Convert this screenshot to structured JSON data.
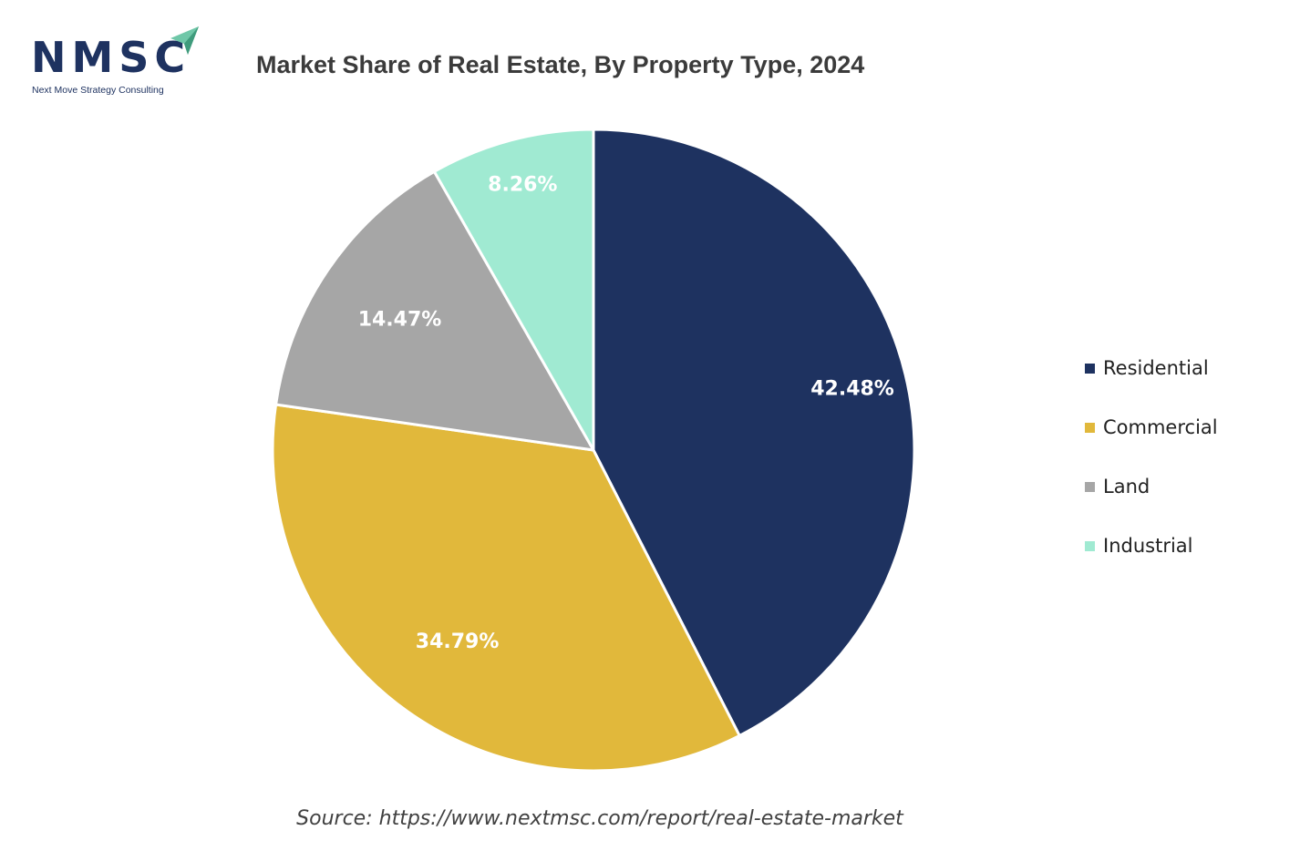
{
  "logo": {
    "name": "NMSC",
    "tagline": "Next Move Strategy Consulting"
  },
  "chart_data": {
    "type": "pie",
    "title": "Market Share of Real Estate, By Property Type, 2024",
    "categories": [
      "Residential",
      "Commercial",
      "Land",
      "Industrial"
    ],
    "values": [
      42.48,
      34.79,
      14.47,
      8.26
    ],
    "labels": [
      "42.48%",
      "34.79%",
      "14.47%",
      "8.26%"
    ],
    "colors": [
      "#1e3260",
      "#e1b83b",
      "#a6a6a6",
      "#a0ead2"
    ],
    "start_angle": "12 o'clock",
    "direction": "clockwise",
    "legend_position": "right"
  },
  "source": "Source: https://www.nextmsc.com/report/real-estate-market",
  "colors": {
    "brand": "#1e3260",
    "accent": "#6fc7a8"
  }
}
